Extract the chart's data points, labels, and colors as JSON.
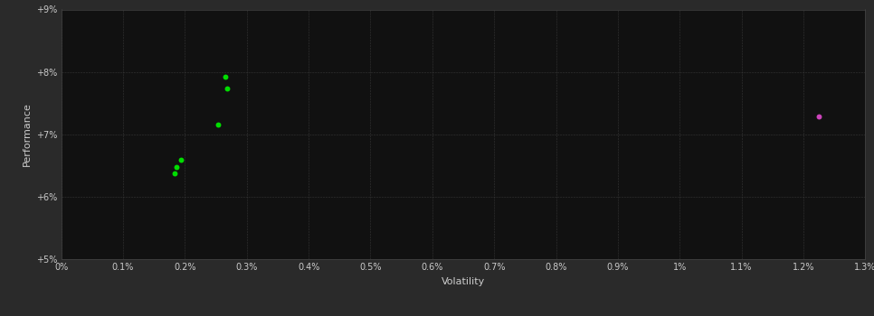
{
  "background_color": "#2a2a2a",
  "plot_bg_color": "#111111",
  "grid_color": "#404040",
  "xlabel": "Volatility",
  "ylabel": "Performance",
  "xlim": [
    0.0,
    0.013
  ],
  "ylim": [
    0.05,
    0.09
  ],
  "xticks": [
    0.0,
    0.001,
    0.002,
    0.003,
    0.004,
    0.005,
    0.006,
    0.007,
    0.008,
    0.009,
    0.01,
    0.011,
    0.012,
    0.013
  ],
  "yticks": [
    0.05,
    0.06,
    0.07,
    0.08,
    0.09
  ],
  "green_points": [
    [
      0.00265,
      0.0792
    ],
    [
      0.00268,
      0.0774
    ],
    [
      0.00253,
      0.0716
    ],
    [
      0.00193,
      0.0659
    ],
    [
      0.00186,
      0.0647
    ],
    [
      0.00183,
      0.0638
    ]
  ],
  "magenta_points": [
    [
      0.01225,
      0.0728
    ]
  ],
  "green_color": "#00dd00",
  "magenta_color": "#cc44bb",
  "point_size": 18,
  "tick_color": "#cccccc",
  "label_color": "#cccccc",
  "xlabel_fontsize": 8,
  "ylabel_fontsize": 8,
  "tick_fontsize": 7
}
